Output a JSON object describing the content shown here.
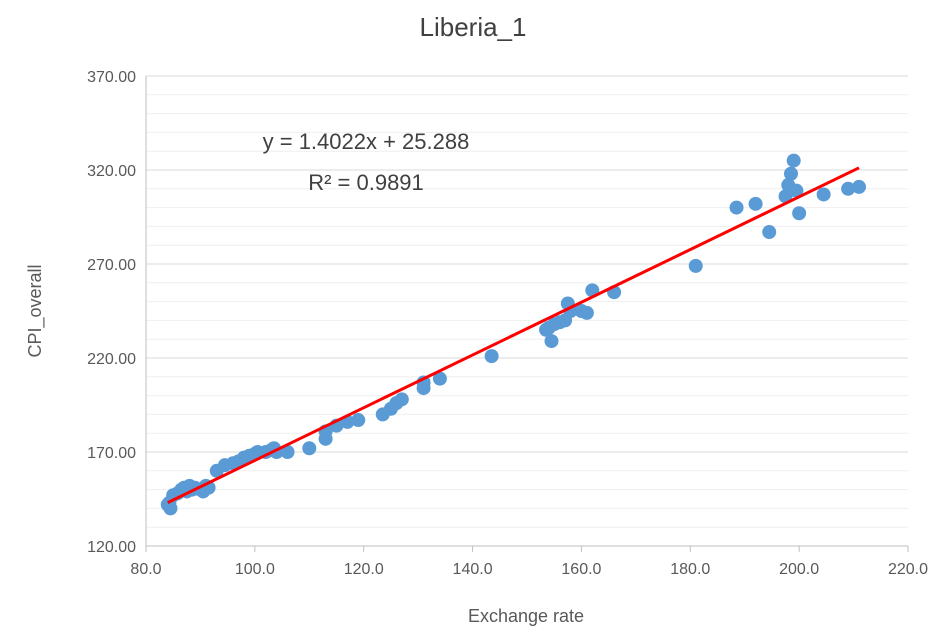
{
  "chart_data": {
    "type": "scatter",
    "title": "Liberia_1",
    "xlabel": "Exchange rate",
    "ylabel": "CPI_overall",
    "xlim": [
      80,
      220
    ],
    "ylim": [
      120,
      370
    ],
    "x_ticks": [
      "80.0",
      "100.0",
      "120.0",
      "140.0",
      "160.0",
      "180.0",
      "200.0",
      "220.0"
    ],
    "y_ticks": [
      "120.00",
      "170.00",
      "220.00",
      "270.00",
      "320.00",
      "370.00"
    ],
    "x_tick_values": [
      80,
      100,
      120,
      140,
      160,
      180,
      200,
      220
    ],
    "y_tick_values": [
      120,
      170,
      220,
      270,
      320,
      370
    ],
    "minor_y_step": 10,
    "grid": true,
    "point_color": "#5B9BD5",
    "trendline_color": "#FF0000",
    "trendline": {
      "slope": 1.4022,
      "intercept": 25.288,
      "x_range": [
        84,
        211
      ],
      "equation": "y = 1.4022x + 25.288",
      "r_squared": "R² = 0.9891"
    },
    "points": [
      [
        84.0,
        142
      ],
      [
        84.5,
        140
      ],
      [
        84.3,
        143
      ],
      [
        85.0,
        147
      ],
      [
        85.8,
        148
      ],
      [
        86.5,
        150
      ],
      [
        87.0,
        151
      ],
      [
        87.5,
        149
      ],
      [
        88.0,
        152
      ],
      [
        88.5,
        150
      ],
      [
        89.0,
        151
      ],
      [
        90.0,
        150
      ],
      [
        90.5,
        149
      ],
      [
        91.0,
        152
      ],
      [
        91.5,
        151
      ],
      [
        93.0,
        160
      ],
      [
        94.5,
        163
      ],
      [
        96.0,
        164
      ],
      [
        97.0,
        165
      ],
      [
        98.0,
        167
      ],
      [
        99.0,
        168
      ],
      [
        100.0,
        169
      ],
      [
        100.5,
        170
      ],
      [
        102.0,
        170
      ],
      [
        103.0,
        171
      ],
      [
        103.5,
        172
      ],
      [
        104.0,
        170
      ],
      [
        106.0,
        170
      ],
      [
        110.0,
        172
      ],
      [
        113.0,
        177
      ],
      [
        113.0,
        181
      ],
      [
        115.0,
        184
      ],
      [
        117.0,
        186
      ],
      [
        119.0,
        187
      ],
      [
        123.5,
        190
      ],
      [
        125.0,
        193
      ],
      [
        126.0,
        196
      ],
      [
        127.0,
        198
      ],
      [
        131.0,
        204
      ],
      [
        131.0,
        207
      ],
      [
        134.0,
        209
      ],
      [
        143.5,
        221
      ],
      [
        153.5,
        235
      ],
      [
        154.0,
        236
      ],
      [
        154.5,
        229
      ],
      [
        155.0,
        238
      ],
      [
        156.0,
        239
      ],
      [
        157.0,
        240
      ],
      [
        157.5,
        249
      ],
      [
        158.0,
        245
      ],
      [
        160.0,
        245
      ],
      [
        161.0,
        244
      ],
      [
        162.0,
        256
      ],
      [
        166.0,
        255
      ],
      [
        181.0,
        269
      ],
      [
        188.5,
        300
      ],
      [
        192.0,
        302
      ],
      [
        194.5,
        287
      ],
      [
        197.5,
        306
      ],
      [
        198.0,
        312
      ],
      [
        198.5,
        318
      ],
      [
        199.0,
        325
      ],
      [
        199.5,
        309
      ],
      [
        200.0,
        297
      ],
      [
        204.5,
        307
      ],
      [
        209.0,
        310
      ],
      [
        211.0,
        311
      ]
    ]
  }
}
